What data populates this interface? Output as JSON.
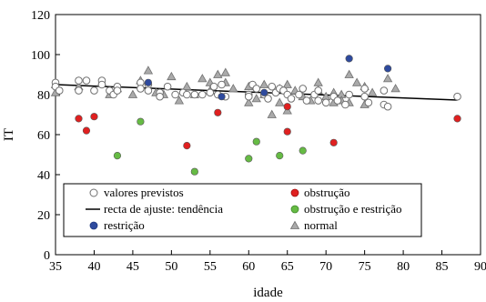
{
  "chart_data": {
    "type": "scatter",
    "xlabel": "idade",
    "ylabel": "IT",
    "xlim": [
      35,
      90
    ],
    "ylim": [
      0,
      120
    ],
    "xticks": [
      35,
      40,
      45,
      50,
      55,
      60,
      65,
      70,
      75,
      80,
      85,
      90
    ],
    "yticks": [
      0,
      20,
      40,
      60,
      80,
      100,
      120
    ],
    "grid": false,
    "legend_position": "bottom-left",
    "trendline": {
      "label": "recta de ajuste: tendência",
      "color": "#000000",
      "x": [
        35,
        87
      ],
      "y": [
        85,
        77.3
      ]
    },
    "series": [
      {
        "name": "valores previstos",
        "marker": "circle-open",
        "color": "#ffffff",
        "stroke": "#707070",
        "points": [
          [
            35,
            86
          ],
          [
            35,
            84
          ],
          [
            35.5,
            82
          ],
          [
            38,
            87
          ],
          [
            38,
            82
          ],
          [
            39,
            87
          ],
          [
            40,
            82
          ],
          [
            41,
            87
          ],
          [
            41,
            85
          ],
          [
            42,
            82
          ],
          [
            42.5,
            80
          ],
          [
            43,
            84
          ],
          [
            43,
            82
          ],
          [
            46,
            86
          ],
          [
            46,
            83
          ],
          [
            47,
            85
          ],
          [
            47,
            82
          ],
          [
            48.5,
            81
          ],
          [
            48.5,
            79
          ],
          [
            49.5,
            84
          ],
          [
            50.5,
            80
          ],
          [
            51.5,
            81
          ],
          [
            52,
            80
          ],
          [
            53,
            80
          ],
          [
            54,
            80
          ],
          [
            55,
            81
          ],
          [
            55.5,
            84
          ],
          [
            56,
            80
          ],
          [
            56.5,
            85
          ],
          [
            57,
            79
          ],
          [
            60,
            80
          ],
          [
            60,
            79
          ],
          [
            60.5,
            85
          ],
          [
            61,
            83
          ],
          [
            62,
            80
          ],
          [
            62.5,
            78
          ],
          [
            63,
            84
          ],
          [
            63.5,
            81
          ],
          [
            64,
            83
          ],
          [
            64.5,
            82
          ],
          [
            65,
            80
          ],
          [
            65.5,
            78
          ],
          [
            66.5,
            80
          ],
          [
            67,
            83
          ],
          [
            67.5,
            77
          ],
          [
            68.5,
            80
          ],
          [
            69,
            82
          ],
          [
            69,
            77
          ],
          [
            70,
            76
          ],
          [
            71,
            79
          ],
          [
            71.5,
            77
          ],
          [
            72.5,
            75
          ],
          [
            73,
            80
          ],
          [
            75,
            83
          ],
          [
            75,
            79
          ],
          [
            75.5,
            76
          ],
          [
            77.5,
            82
          ],
          [
            77.5,
            75
          ],
          [
            78,
            74
          ],
          [
            87,
            79
          ]
        ]
      },
      {
        "name": "obstrução",
        "marker": "circle",
        "color": "#e02020",
        "points": [
          [
            38,
            68
          ],
          [
            39,
            62
          ],
          [
            40,
            69
          ],
          [
            52,
            54.5
          ],
          [
            56,
            71
          ],
          [
            65,
            74
          ],
          [
            65,
            61.5
          ],
          [
            71,
            56
          ],
          [
            87,
            68
          ]
        ]
      },
      {
        "name": "obstrução e restrição",
        "marker": "circle",
        "color": "#66bb44",
        "points": [
          [
            43,
            49.5
          ],
          [
            46,
            66.5
          ],
          [
            53,
            41.5
          ],
          [
            60,
            48
          ],
          [
            61,
            56.5
          ],
          [
            64,
            49.5
          ],
          [
            67,
            52
          ]
        ]
      },
      {
        "name": "restrição",
        "marker": "circle",
        "color": "#2e4a9e",
        "points": [
          [
            47,
            86
          ],
          [
            56.5,
            79
          ],
          [
            62,
            81
          ],
          [
            73,
            98
          ],
          [
            78,
            93
          ]
        ]
      },
      {
        "name": "normal",
        "marker": "triangle",
        "color": "#aaaaaa",
        "points": [
          [
            35,
            85
          ],
          [
            35,
            81
          ],
          [
            38,
            84
          ],
          [
            41,
            86
          ],
          [
            42,
            80
          ],
          [
            43,
            83
          ],
          [
            45,
            80
          ],
          [
            46,
            87
          ],
          [
            47,
            92
          ],
          [
            48,
            81
          ],
          [
            49,
            80
          ],
          [
            50,
            89
          ],
          [
            51,
            77
          ],
          [
            52,
            84
          ],
          [
            53,
            80
          ],
          [
            54,
            88
          ],
          [
            55,
            86
          ],
          [
            55,
            82
          ],
          [
            56,
            90
          ],
          [
            57,
            91
          ],
          [
            57,
            86
          ],
          [
            58,
            83
          ],
          [
            60,
            84
          ],
          [
            60,
            76
          ],
          [
            61,
            78
          ],
          [
            62,
            85
          ],
          [
            62,
            80
          ],
          [
            63,
            70
          ],
          [
            64,
            83
          ],
          [
            64,
            76
          ],
          [
            65,
            72
          ],
          [
            65,
            85
          ],
          [
            66,
            82
          ],
          [
            67,
            79
          ],
          [
            68,
            77
          ],
          [
            69,
            86
          ],
          [
            69,
            82
          ],
          [
            70,
            79
          ],
          [
            71,
            81
          ],
          [
            71,
            76
          ],
          [
            72,
            80
          ],
          [
            72,
            77
          ],
          [
            73,
            90
          ],
          [
            73,
            76
          ],
          [
            74,
            86
          ],
          [
            75,
            84
          ],
          [
            75,
            75
          ],
          [
            76,
            81
          ],
          [
            78,
            88
          ],
          [
            79,
            83
          ]
        ]
      }
    ]
  }
}
